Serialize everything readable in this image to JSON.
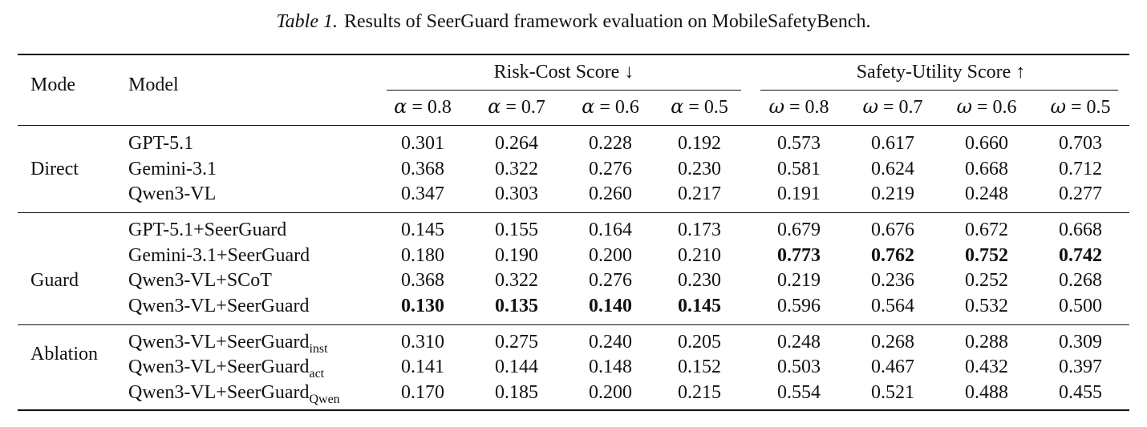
{
  "caption": {
    "label": "Table 1.",
    "text": "Results of SeerGuard framework evaluation on MobileSafetyBench."
  },
  "header": {
    "mode": "Mode",
    "model": "Model",
    "group1": "Risk-Cost Score ↓",
    "group2": "Safety-Utility Score ↑",
    "alpha_symbol": "α",
    "omega_symbol": "ω",
    "eq": " = ",
    "params": [
      "0.8",
      "0.7",
      "0.6",
      "0.5"
    ]
  },
  "groups": [
    {
      "mode": "Direct",
      "rows": [
        {
          "model": "GPT-5.1",
          "sub": "",
          "values": [
            "0.301",
            "0.264",
            "0.228",
            "0.192",
            "0.573",
            "0.617",
            "0.660",
            "0.703"
          ],
          "bold": []
        },
        {
          "model": "Gemini-3.1",
          "sub": "",
          "values": [
            "0.368",
            "0.322",
            "0.276",
            "0.230",
            "0.581",
            "0.624",
            "0.668",
            "0.712"
          ],
          "bold": []
        },
        {
          "model": "Qwen3-VL",
          "sub": "",
          "values": [
            "0.347",
            "0.303",
            "0.260",
            "0.217",
            "0.191",
            "0.219",
            "0.248",
            "0.277"
          ],
          "bold": []
        }
      ]
    },
    {
      "mode": "Guard",
      "rows": [
        {
          "model": "GPT-5.1+SeerGuard",
          "sub": "",
          "values": [
            "0.145",
            "0.155",
            "0.164",
            "0.173",
            "0.679",
            "0.676",
            "0.672",
            "0.668"
          ],
          "bold": []
        },
        {
          "model": "Gemini-3.1+SeerGuard",
          "sub": "",
          "values": [
            "0.180",
            "0.190",
            "0.200",
            "0.210",
            "0.773",
            "0.762",
            "0.752",
            "0.742"
          ],
          "bold": [
            4,
            5,
            6,
            7
          ]
        },
        {
          "model": "Qwen3-VL+SCoT",
          "sub": "",
          "values": [
            "0.368",
            "0.322",
            "0.276",
            "0.230",
            "0.219",
            "0.236",
            "0.252",
            "0.268"
          ],
          "bold": []
        },
        {
          "model": "Qwen3-VL+SeerGuard",
          "sub": "",
          "values": [
            "0.130",
            "0.135",
            "0.140",
            "0.145",
            "0.596",
            "0.564",
            "0.532",
            "0.500"
          ],
          "bold": [
            0,
            1,
            2,
            3
          ]
        }
      ]
    },
    {
      "mode": "Ablation",
      "rows": [
        {
          "model": "Qwen3-VL+SeerGuard",
          "sub": "inst",
          "values": [
            "0.310",
            "0.275",
            "0.240",
            "0.205",
            "0.248",
            "0.268",
            "0.288",
            "0.309"
          ],
          "bold": []
        },
        {
          "model": "Qwen3-VL+SeerGuard",
          "sub": "act",
          "values": [
            "0.141",
            "0.144",
            "0.148",
            "0.152",
            "0.503",
            "0.467",
            "0.432",
            "0.397"
          ],
          "bold": []
        },
        {
          "model": "Qwen3-VL+SeerGuard",
          "sub": "Qwen",
          "values": [
            "0.170",
            "0.185",
            "0.200",
            "0.215",
            "0.554",
            "0.521",
            "0.488",
            "0.455"
          ],
          "bold": []
        }
      ]
    }
  ]
}
